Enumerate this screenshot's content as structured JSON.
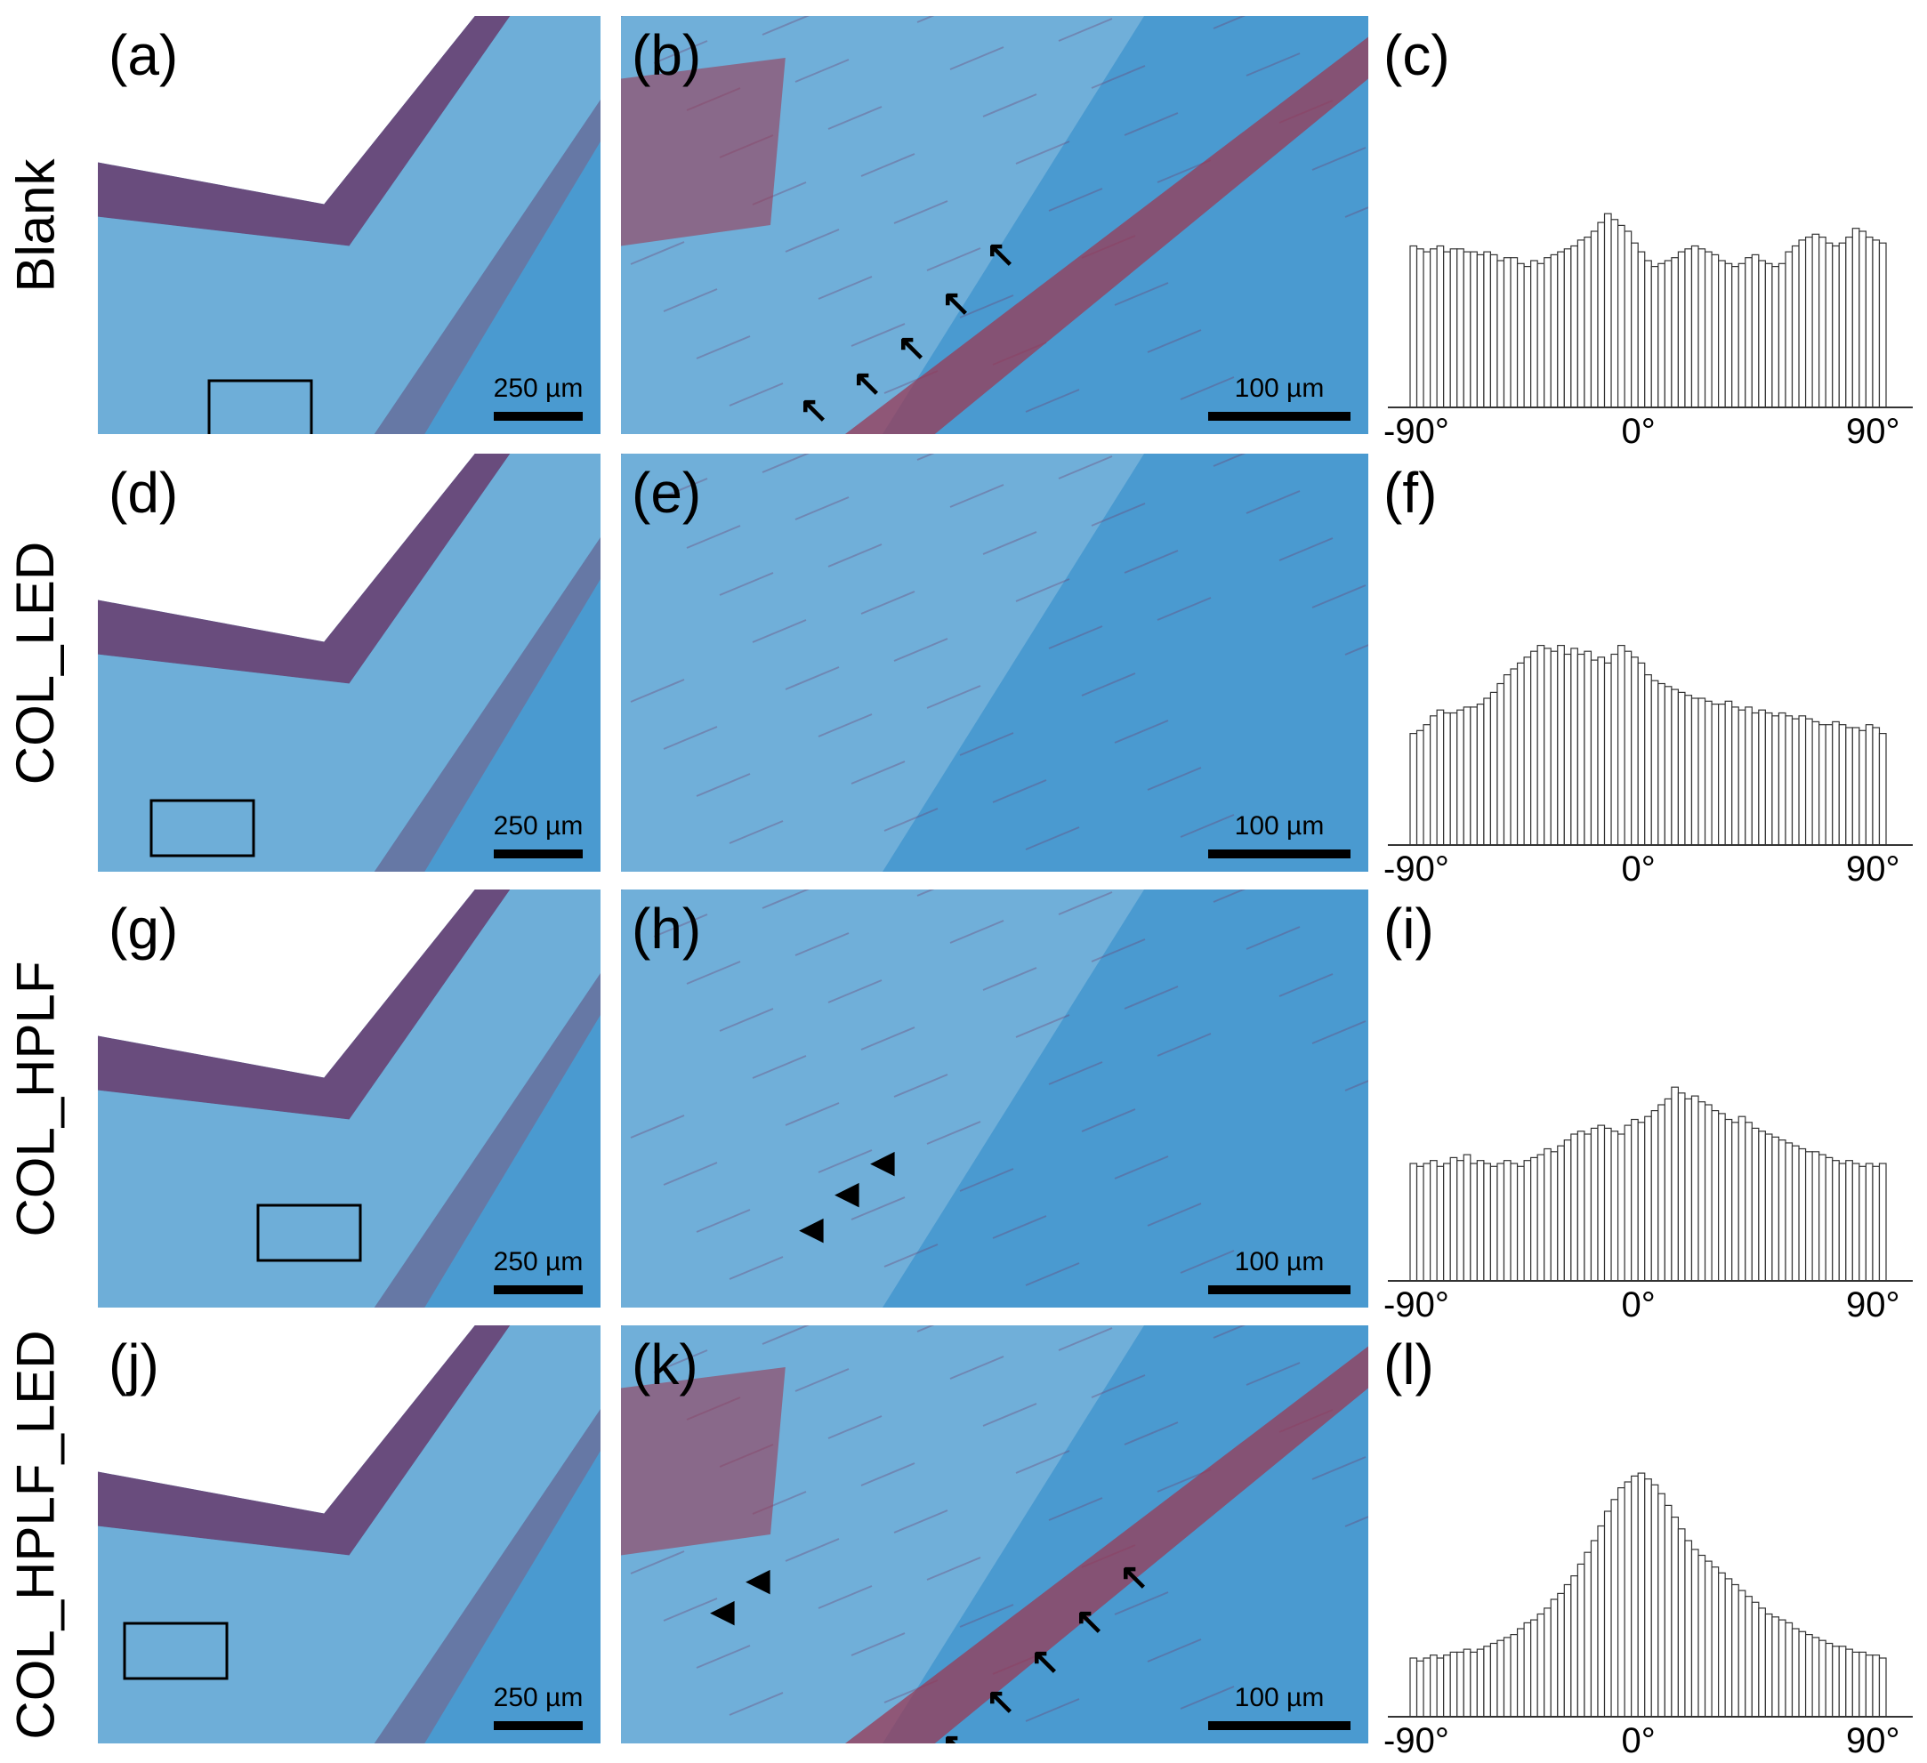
{
  "rows": [
    {
      "label": "Blank",
      "panels": {
        "low": "(a)",
        "high": "(b)",
        "hist": "(c)"
      },
      "scale_low": "250 µm",
      "scale_high": "100 µm",
      "markers": "arrows",
      "hist_values": [
        55,
        54,
        53,
        54,
        55,
        53,
        54,
        54,
        53,
        53,
        52,
        53,
        52,
        50,
        51,
        51,
        49,
        48,
        50,
        49,
        51,
        52,
        53,
        54,
        55,
        57,
        58,
        60,
        63,
        66,
        64,
        62,
        60,
        56,
        53,
        50,
        48,
        49,
        50,
        51,
        53,
        54,
        55,
        54,
        53,
        52,
        50,
        49,
        48,
        49,
        51,
        52,
        50,
        49,
        48,
        49,
        53,
        55,
        57,
        58,
        59,
        58,
        56,
        55,
        56,
        58,
        61,
        60,
        58,
        57,
        56
      ]
    },
    {
      "label": "COL_LED",
      "panels": {
        "low": "(d)",
        "high": "(e)",
        "hist": "(f)"
      },
      "scale_low": "250 µm",
      "scale_high": "100 µm",
      "markers": "none",
      "hist_values": [
        38,
        39,
        41,
        44,
        46,
        45,
        45,
        46,
        47,
        47,
        48,
        50,
        52,
        55,
        58,
        60,
        62,
        64,
        66,
        68,
        67,
        66,
        68,
        65,
        67,
        65,
        66,
        63,
        64,
        62,
        65,
        68,
        66,
        64,
        62,
        58,
        56,
        55,
        54,
        53,
        52,
        51,
        50,
        50,
        49,
        48,
        48,
        49,
        47,
        46,
        47,
        45,
        46,
        45,
        44,
        45,
        44,
        43,
        44,
        43,
        42,
        41,
        41,
        42,
        41,
        40,
        40,
        39,
        41,
        40,
        38
      ]
    },
    {
      "label": "COL_HPLF",
      "panels": {
        "low": "(g)",
        "high": "(h)",
        "hist": "(i)"
      },
      "scale_low": "250 µm",
      "scale_high": "100 µm",
      "markers": "arrowheads",
      "hist_values": [
        40,
        39,
        40,
        41,
        39,
        40,
        42,
        41,
        43,
        40,
        41,
        40,
        39,
        40,
        41,
        40,
        39,
        41,
        42,
        43,
        45,
        44,
        46,
        48,
        50,
        51,
        50,
        52,
        53,
        52,
        51,
        50,
        53,
        55,
        54,
        56,
        58,
        60,
        62,
        66,
        64,
        62,
        63,
        61,
        60,
        58,
        57,
        55,
        54,
        56,
        54,
        52,
        51,
        50,
        49,
        48,
        47,
        46,
        45,
        44,
        44,
        43,
        42,
        41,
        40,
        41,
        40,
        39,
        40,
        39,
        40
      ]
    },
    {
      "label": "COL_HPLF_LED",
      "panels": {
        "low": "(j)",
        "high": "(k)",
        "hist": "(l)"
      },
      "scale_low": "250 µm",
      "scale_high": "100 µm",
      "markers": "both",
      "hist_values": [
        20,
        19,
        20,
        21,
        20,
        21,
        22,
        22,
        23,
        22,
        23,
        24,
        25,
        26,
        27,
        28,
        30,
        32,
        33,
        35,
        37,
        40,
        42,
        45,
        48,
        52,
        56,
        60,
        65,
        70,
        74,
        78,
        80,
        82,
        83,
        81,
        79,
        76,
        72,
        68,
        64,
        60,
        57,
        55,
        53,
        51,
        49,
        47,
        45,
        43,
        41,
        39,
        37,
        35,
        34,
        33,
        32,
        30,
        29,
        28,
        27,
        26,
        25,
        24,
        24,
        23,
        22,
        22,
        21,
        21,
        20
      ]
    }
  ],
  "hist_ticks": [
    "-90°",
    "0°",
    "90°"
  ],
  "colors": {
    "background_blue": "#4a9ad0",
    "stroma_blue": "#7eb6dc",
    "red_tissue": "#9a3a55",
    "purple_tissue": "#6e3e6e",
    "bar_edge": "#333333"
  }
}
